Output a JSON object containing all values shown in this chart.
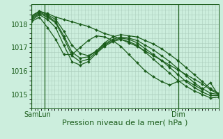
{
  "bg_color": "#cceedd",
  "grid_color": "#aaccbb",
  "line_color": "#1a5c1a",
  "marker": "D",
  "markersize": 2.0,
  "linewidth": 0.9,
  "xlabel": "Pression niveau de la mer( hPa )",
  "xlabel_fontsize": 8,
  "tick_color": "#1a5c1a",
  "tick_fontsize": 7,
  "ylim": [
    1014.4,
    1018.85
  ],
  "yticks": [
    1015,
    1016,
    1017,
    1018
  ],
  "day_labels": [
    "Sam",
    "Lun",
    "Dim"
  ],
  "day_positions": [
    0,
    12,
    132
  ],
  "total_steps": 168,
  "series": [
    [
      1018.35,
      1018.55,
      1018.45,
      1018.3,
      1018.2,
      1018.1,
      1018.0,
      1017.9,
      1017.75,
      1017.6,
      1017.5,
      1017.35,
      1017.2,
      1017.05,
      1016.85,
      1016.65,
      1016.45,
      1016.25,
      1016.05,
      1015.85,
      1015.65,
      1015.45,
      1015.2,
      1015.0
    ],
    [
      1018.3,
      1018.55,
      1018.4,
      1018.2,
      1017.7,
      1017.1,
      1016.75,
      1016.65,
      1016.85,
      1017.2,
      1017.45,
      1017.55,
      1017.5,
      1017.45,
      1017.3,
      1017.15,
      1016.95,
      1016.7,
      1016.45,
      1016.15,
      1015.85,
      1015.55,
      1015.25,
      1015.05
    ],
    [
      1018.25,
      1018.5,
      1018.35,
      1018.1,
      1017.5,
      1016.8,
      1016.55,
      1016.6,
      1016.85,
      1017.15,
      1017.35,
      1017.45,
      1017.4,
      1017.3,
      1017.1,
      1016.9,
      1016.65,
      1016.4,
      1016.1,
      1015.8,
      1015.5,
      1015.25,
      1015.05,
      1015.0
    ],
    [
      1018.2,
      1018.45,
      1018.3,
      1018.05,
      1017.4,
      1016.65,
      1016.4,
      1016.5,
      1016.8,
      1017.1,
      1017.3,
      1017.4,
      1017.35,
      1017.2,
      1016.95,
      1016.7,
      1016.45,
      1016.15,
      1015.85,
      1015.55,
      1015.3,
      1015.1,
      1014.95,
      1014.95
    ],
    [
      1018.15,
      1018.4,
      1018.2,
      1017.85,
      1017.1,
      1016.4,
      1016.25,
      1016.4,
      1016.75,
      1017.05,
      1017.25,
      1017.35,
      1017.25,
      1017.1,
      1016.8,
      1016.5,
      1016.2,
      1015.9,
      1015.6,
      1015.35,
      1015.15,
      1015.0,
      1014.85,
      1014.88
    ],
    [
      1018.1,
      1018.3,
      1017.85,
      1017.35,
      1016.7,
      1016.7,
      1017.0,
      1017.3,
      1017.5,
      1017.45,
      1017.3,
      1017.05,
      1016.7,
      1016.35,
      1016.0,
      1015.75,
      1015.55,
      1015.4,
      1015.55,
      1015.6,
      1015.4,
      1015.2,
      1015.5,
      1014.95
    ]
  ]
}
